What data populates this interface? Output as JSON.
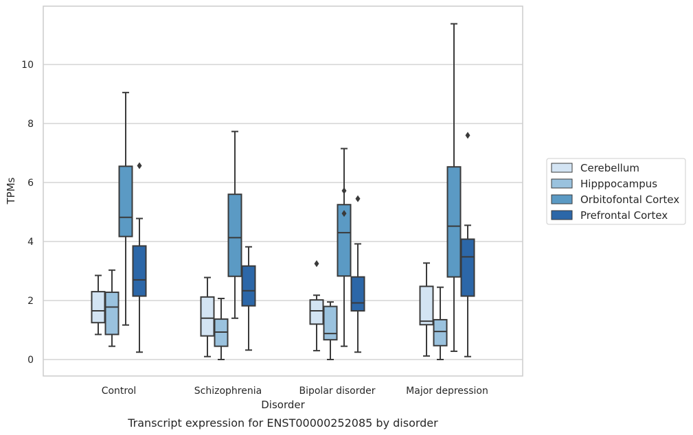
{
  "chart_data": {
    "type": "box",
    "caption": "Transcript expression for ENST00000252085 by disorder",
    "xlabel": "Disorder",
    "ylabel": "TPMs",
    "ylim": [
      -0.55,
      12
    ],
    "yticks": [
      0,
      2,
      4,
      6,
      8,
      10
    ],
    "grid": "horizontal",
    "legend_position": "right",
    "categories": [
      "Control",
      "Schizophrenia",
      "Bipolar disorder",
      "Major depression"
    ],
    "series": [
      {
        "name": "Cerebellum",
        "color": "#d3e4f3",
        "boxes": [
          {
            "whisker_low": 0.85,
            "q1": 1.25,
            "median": 1.65,
            "q3": 2.3,
            "whisker_high": 2.85,
            "outliers": []
          },
          {
            "whisker_low": 0.1,
            "q1": 0.8,
            "median": 1.4,
            "q3": 2.12,
            "whisker_high": 2.78,
            "outliers": []
          },
          {
            "whisker_low": 0.3,
            "q1": 1.2,
            "median": 1.65,
            "q3": 2.02,
            "whisker_high": 2.18,
            "outliers": [
              3.25
            ]
          },
          {
            "whisker_low": 0.12,
            "q1": 1.18,
            "median": 1.3,
            "q3": 2.48,
            "whisker_high": 3.27,
            "outliers": []
          }
        ]
      },
      {
        "name": "Hipppocampus",
        "color": "#9ac2de",
        "boxes": [
          {
            "whisker_low": 0.45,
            "q1": 0.85,
            "median": 1.78,
            "q3": 2.28,
            "whisker_high": 3.03,
            "outliers": []
          },
          {
            "whisker_low": 0.0,
            "q1": 0.45,
            "median": 0.93,
            "q3": 1.37,
            "whisker_high": 2.07,
            "outliers": []
          },
          {
            "whisker_low": 0.0,
            "q1": 0.67,
            "median": 0.88,
            "q3": 1.8,
            "whisker_high": 1.95,
            "outliers": []
          },
          {
            "whisker_low": 0.0,
            "q1": 0.47,
            "median": 0.95,
            "q3": 1.35,
            "whisker_high": 2.45,
            "outliers": []
          }
        ]
      },
      {
        "name": "Orbitofontal Cortex",
        "color": "#5b9ac4",
        "boxes": [
          {
            "whisker_low": 1.17,
            "q1": 4.17,
            "median": 4.82,
            "q3": 6.55,
            "whisker_high": 9.05,
            "outliers": []
          },
          {
            "whisker_low": 1.4,
            "q1": 2.82,
            "median": 4.13,
            "q3": 5.6,
            "whisker_high": 7.73,
            "outliers": []
          },
          {
            "whisker_low": 0.45,
            "q1": 2.83,
            "median": 4.3,
            "q3": 5.25,
            "whisker_high": 7.15,
            "outliers": [
              4.95,
              5.72
            ]
          },
          {
            "whisker_low": 0.28,
            "q1": 2.8,
            "median": 4.52,
            "q3": 6.53,
            "whisker_high": 11.38,
            "outliers": []
          }
        ]
      },
      {
        "name": "Prefrontal Cortex",
        "color": "#2c67a8",
        "boxes": [
          {
            "whisker_low": 0.25,
            "q1": 2.15,
            "median": 2.7,
            "q3": 3.85,
            "whisker_high": 4.78,
            "outliers": [
              6.57
            ]
          },
          {
            "whisker_low": 0.32,
            "q1": 1.82,
            "median": 2.33,
            "q3": 3.17,
            "whisker_high": 3.82,
            "outliers": []
          },
          {
            "whisker_low": 0.25,
            "q1": 1.65,
            "median": 1.92,
            "q3": 2.8,
            "whisker_high": 3.92,
            "outliers": [
              5.45
            ]
          },
          {
            "whisker_low": 0.1,
            "q1": 2.15,
            "median": 3.48,
            "q3": 4.08,
            "whisker_high": 4.55,
            "outliers": [
              7.6
            ]
          }
        ]
      }
    ]
  }
}
